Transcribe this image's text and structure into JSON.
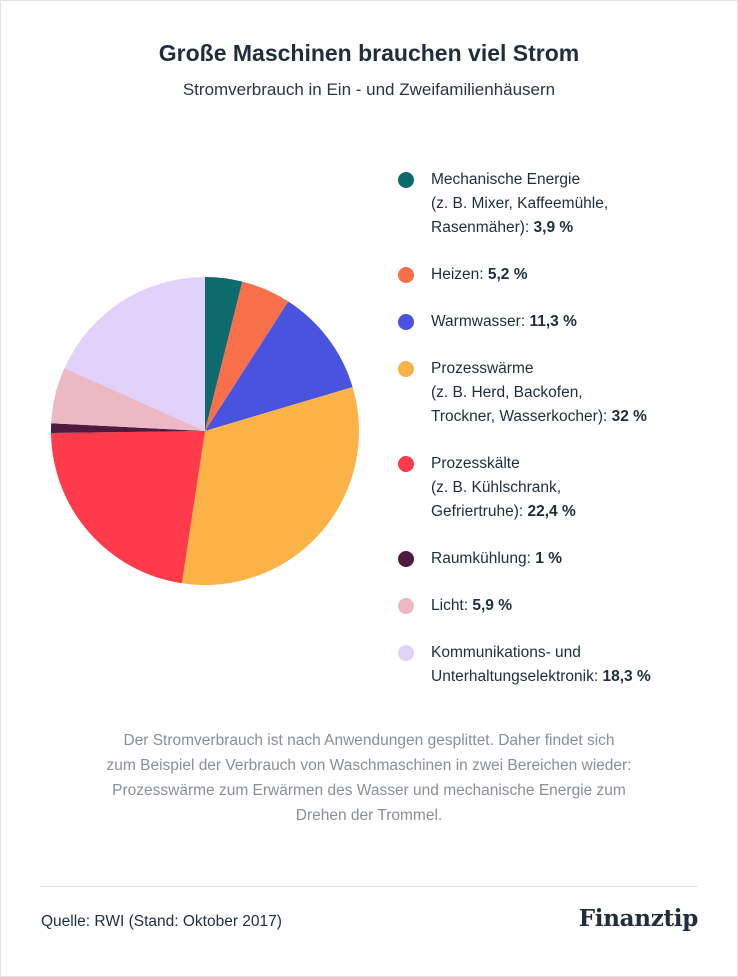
{
  "header": {
    "title": "Große Maschinen brauchen viel Strom",
    "subtitle": "Stromverbrauch in Ein - und Zweifamilienhäusern"
  },
  "chart_data": {
    "type": "pie",
    "title": "Große Maschinen brauchen viel Strom",
    "subtitle": "Stromverbrauch in Ein - und Zweifamilienhäusern",
    "unit": "%",
    "legend_position": "right",
    "slices": [
      {
        "label_lines": [
          "Mechanische Energie",
          "(z. B. Mixer, Kaffeemühle,",
          "Rasenmäher):"
        ],
        "value": 3.9,
        "value_text": "3,9 %",
        "color": "#0d6b6e"
      },
      {
        "label_lines": [
          "Heizen:"
        ],
        "value": 5.2,
        "value_text": "5,2 %",
        "color": "#f7704a"
      },
      {
        "label_lines": [
          "Warmwasser:"
        ],
        "value": 11.3,
        "value_text": "11,3 %",
        "color": "#4a52e0"
      },
      {
        "label_lines": [
          "Prozesswärme",
          "(z. B. Herd, Backofen,",
          "Trockner, Wasserkocher):"
        ],
        "value": 32,
        "value_text": "32 %",
        "color": "#fbb347"
      },
      {
        "label_lines": [
          "Prozesskälte",
          "(z. B. Kühlschrank,",
          "Gefriertruhe):"
        ],
        "value": 22.4,
        "value_text": "22,4 %",
        "color": "#ff3a4a"
      },
      {
        "label_lines": [
          "Raumkühlung:"
        ],
        "value": 1,
        "value_text": "1 %",
        "color": "#4f1a3f"
      },
      {
        "label_lines": [
          "Licht:"
        ],
        "value": 5.9,
        "value_text": "5,9 %",
        "color": "#ebb8c4"
      },
      {
        "label_lines": [
          "Kommunikations- und",
          "Unterhaltungselektronik:"
        ],
        "value": 18.3,
        "value_text": "18,3 %",
        "color": "#e2d1fb"
      }
    ]
  },
  "note": {
    "lines": [
      "Der Stromverbrauch ist nach Anwendungen gesplittet. Daher findet sich",
      "zum Beispiel der Verbrauch von Waschmaschinen in zwei Bereichen wieder:",
      "Prozesswärme zum Erwärmen des Wasser und mechanische Energie zum",
      "Drehen der Trommel."
    ]
  },
  "footer": {
    "source": "Quelle: RWI (Stand: Oktober 2017)",
    "logo": "Finanztip"
  }
}
